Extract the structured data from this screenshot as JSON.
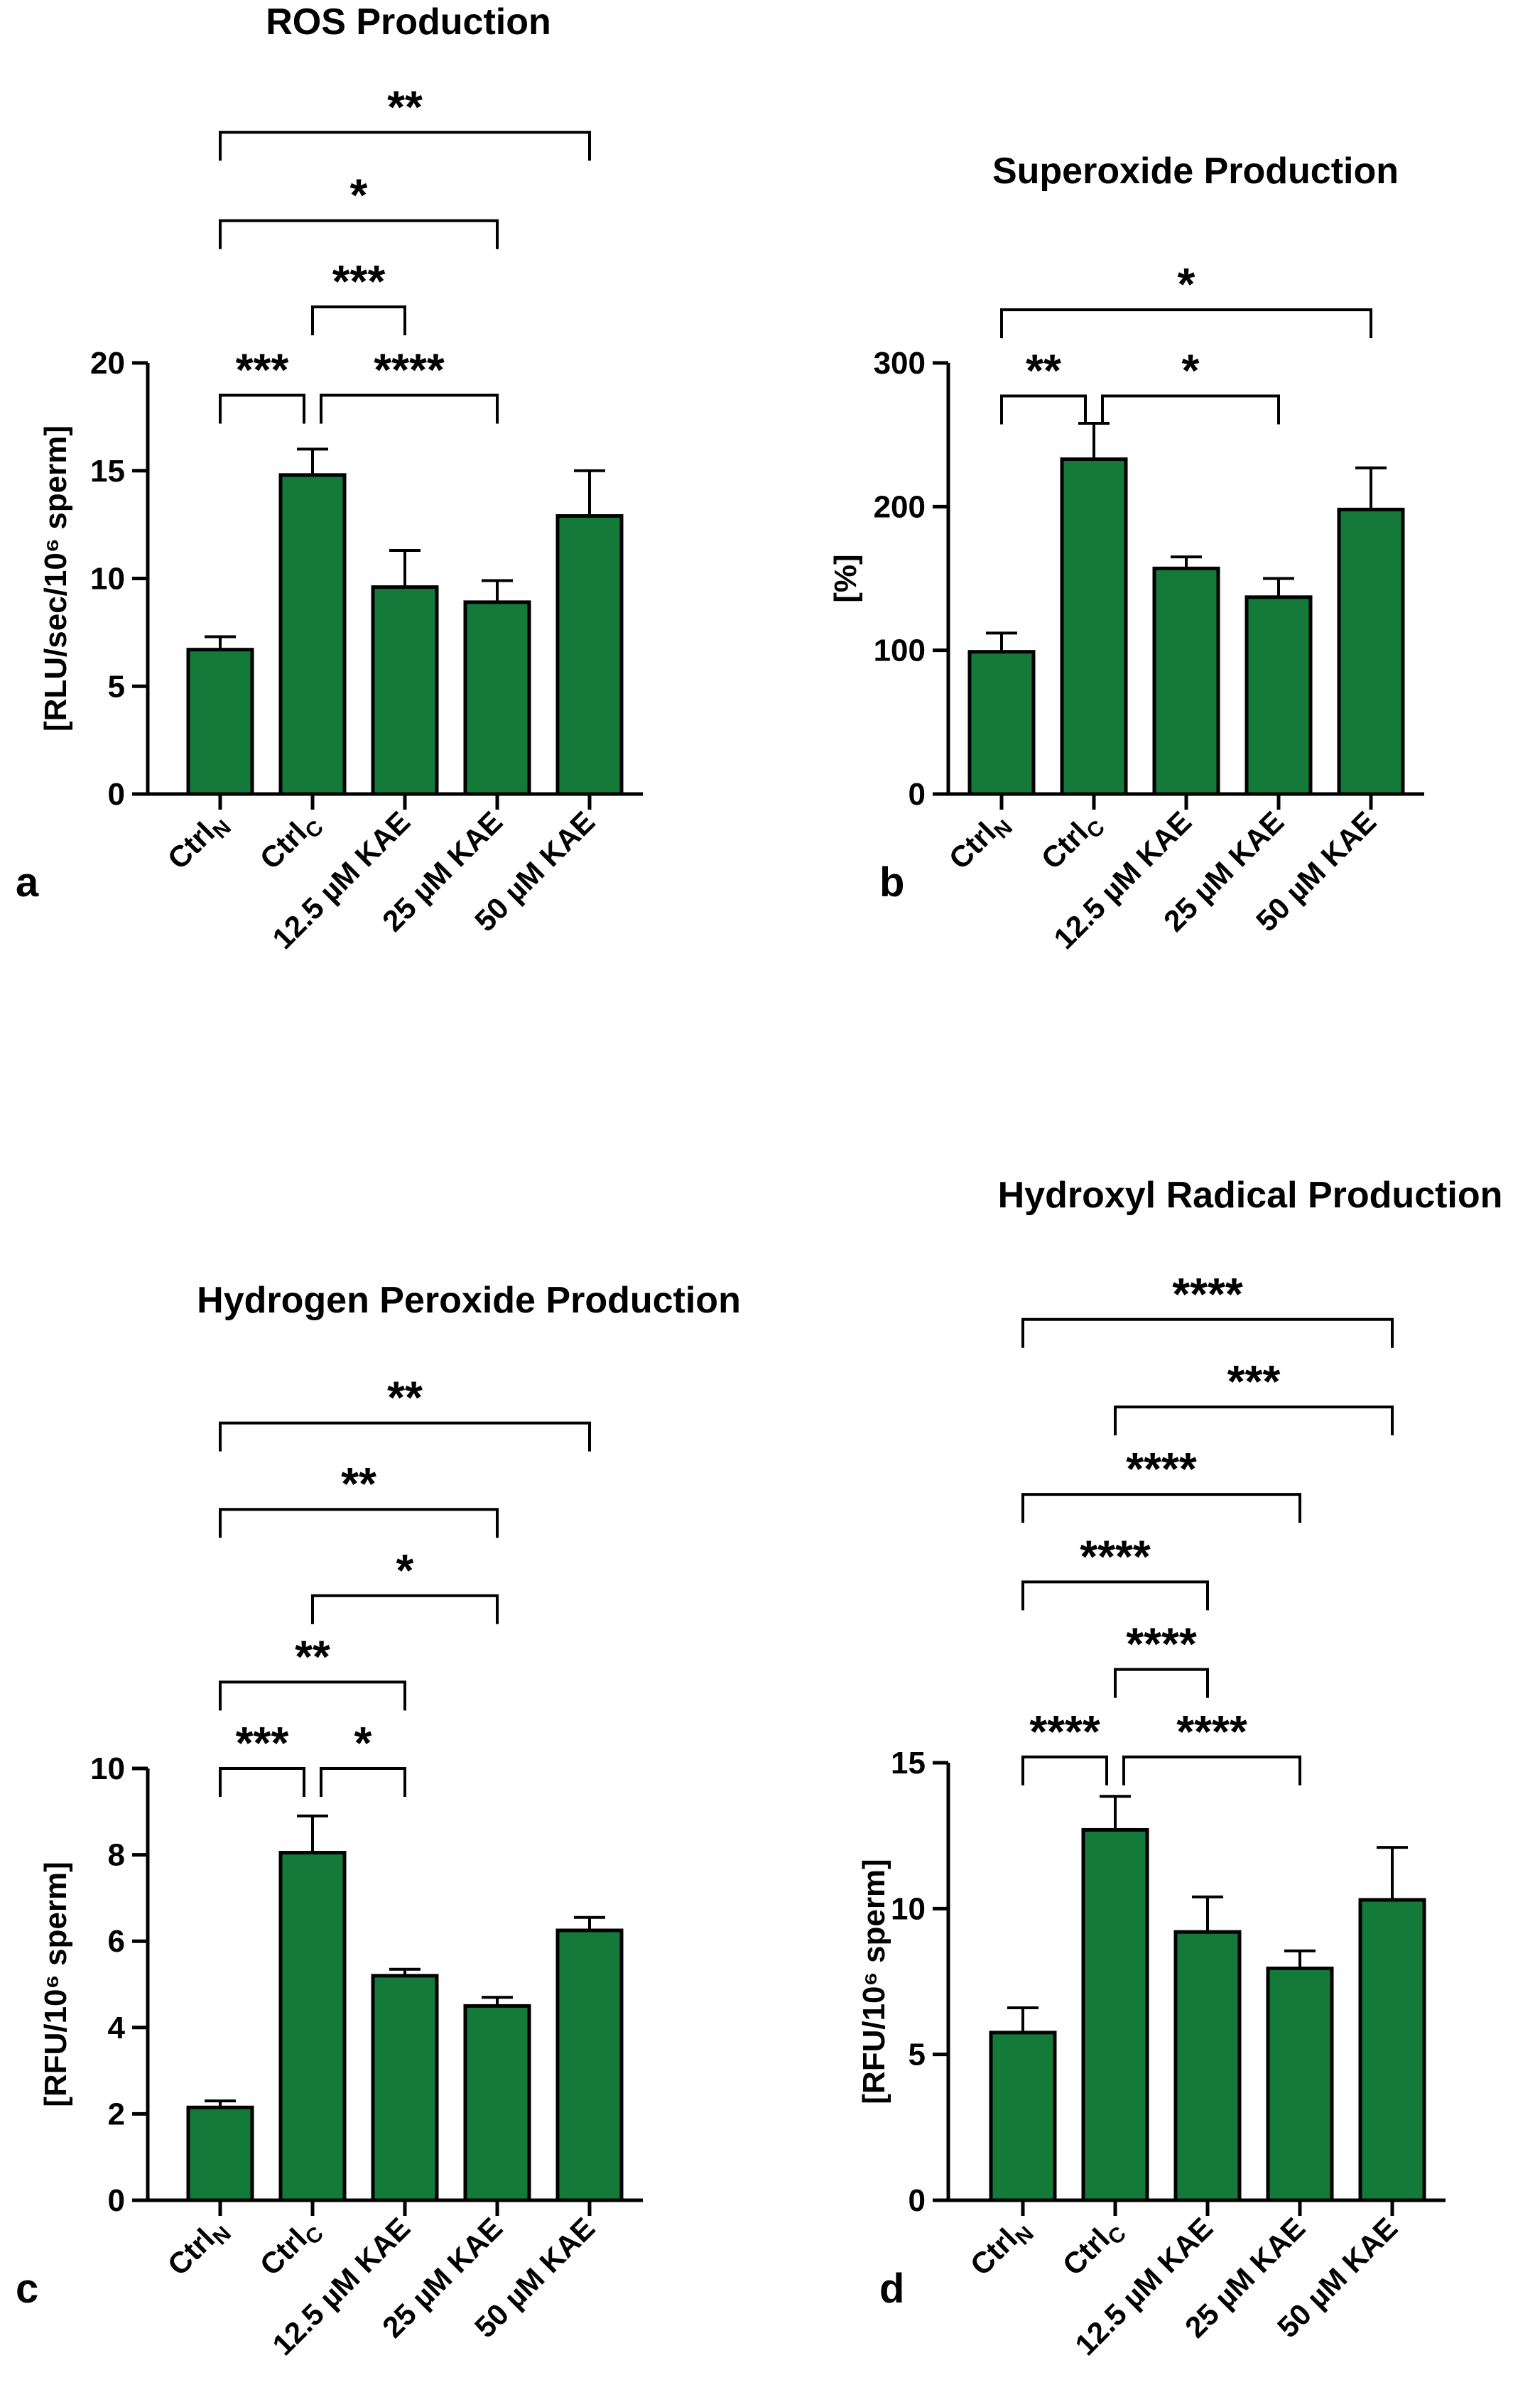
{
  "colors": {
    "bar_fill": "#147a3a",
    "bar_stroke": "#000000",
    "ink": "#000000"
  },
  "chart_data": [
    {
      "panel_label": "a",
      "type": "bar",
      "title": "ROS Production",
      "ylabel": "[RLU/sec/10⁶ sperm]",
      "ylim": [
        0,
        20
      ],
      "yticks": [
        "0",
        "5",
        "10",
        "15",
        "20"
      ],
      "categories": [
        {
          "main": "Ctrl",
          "sub": "N"
        },
        {
          "main": "Ctrl",
          "sub": "C"
        },
        {
          "main": "12.5 µM KAE",
          "sub": ""
        },
        {
          "main": "25 µM KAE",
          "sub": ""
        },
        {
          "main": "50 µM KAE",
          "sub": ""
        }
      ],
      "values": [
        6.7,
        14.8,
        9.6,
        8.9,
        12.9
      ],
      "errors": [
        0.6,
        1.2,
        1.7,
        1.0,
        2.1
      ],
      "significance": [
        {
          "from": 0,
          "to": 1,
          "label": "***",
          "y": 18.5
        },
        {
          "from": 1,
          "to": 3,
          "label": "****",
          "y": 18.5
        },
        {
          "from": 1,
          "to": 2,
          "label": "***",
          "y": 22.6
        },
        {
          "from": 0,
          "to": 3,
          "label": "*",
          "y": 26.6
        },
        {
          "from": 0,
          "to": 4,
          "label": "**",
          "y": 30.7
        }
      ]
    },
    {
      "panel_label": "b",
      "type": "bar",
      "title": "Superoxide Production",
      "ylabel": "[%]",
      "ylim": [
        0,
        300
      ],
      "yticks": [
        "0",
        "100",
        "200",
        "300"
      ],
      "categories": [
        {
          "main": "Ctrl",
          "sub": "N"
        },
        {
          "main": "Ctrl",
          "sub": "C"
        },
        {
          "main": "12.5 µM KAE",
          "sub": ""
        },
        {
          "main": "25 µM KAE",
          "sub": ""
        },
        {
          "main": "50 µM KAE",
          "sub": ""
        }
      ],
      "values": [
        99,
        233,
        157,
        137,
        198
      ],
      "errors": [
        13,
        25,
        8,
        13,
        29
      ],
      "significance": [
        {
          "from": 0,
          "to": 1,
          "label": "**",
          "y": 277
        },
        {
          "from": 1,
          "to": 3,
          "label": "*",
          "y": 277
        },
        {
          "from": 0,
          "to": 4,
          "label": "*",
          "y": 337
        }
      ]
    },
    {
      "panel_label": "c",
      "type": "bar",
      "title": "Hydrogen Peroxide Production",
      "ylabel": "[RFU/10⁶ sperm]",
      "ylim": [
        0,
        10
      ],
      "yticks": [
        "0",
        "2",
        "4",
        "6",
        "8",
        "10"
      ],
      "categories": [
        {
          "main": "Ctrl",
          "sub": "N"
        },
        {
          "main": "Ctrl",
          "sub": "C"
        },
        {
          "main": "12.5 µM KAE",
          "sub": ""
        },
        {
          "main": "25 µM KAE",
          "sub": ""
        },
        {
          "main": "50 µM KAE",
          "sub": ""
        }
      ],
      "values": [
        2.15,
        8.05,
        5.2,
        4.5,
        6.25
      ],
      "errors": [
        0.15,
        0.85,
        0.15,
        0.2,
        0.3
      ],
      "significance": [
        {
          "from": 0,
          "to": 1,
          "label": "***",
          "y": 10.0
        },
        {
          "from": 1,
          "to": 2,
          "label": "*",
          "y": 10.0
        },
        {
          "from": 0,
          "to": 2,
          "label": "**",
          "y": 12.0
        },
        {
          "from": 1,
          "to": 3,
          "label": "*",
          "y": 14.0
        },
        {
          "from": 0,
          "to": 3,
          "label": "**",
          "y": 16.0
        },
        {
          "from": 0,
          "to": 4,
          "label": "**",
          "y": 18.0
        }
      ]
    },
    {
      "panel_label": "d",
      "type": "bar",
      "title": "Hydroxyl Radical Production",
      "ylabel": "[RFU/10⁶ sperm]",
      "ylim": [
        0,
        15
      ],
      "yticks": [
        "0",
        "5",
        "10",
        "15"
      ],
      "categories": [
        {
          "main": "Ctrl",
          "sub": "N"
        },
        {
          "main": "Ctrl",
          "sub": "C"
        },
        {
          "main": "12.5 µM KAE",
          "sub": ""
        },
        {
          "main": "25 µM KAE",
          "sub": ""
        },
        {
          "main": "50 µM KAE",
          "sub": ""
        }
      ],
      "values": [
        5.75,
        12.7,
        9.2,
        7.95,
        10.3
      ],
      "errors": [
        0.85,
        1.15,
        1.2,
        0.6,
        1.8
      ],
      "significance": [
        {
          "from": 0,
          "to": 1,
          "label": "****",
          "y": 15.2
        },
        {
          "from": 1,
          "to": 3,
          "label": "****",
          "y": 15.2
        },
        {
          "from": 1,
          "to": 2,
          "label": "****",
          "y": 18.2
        },
        {
          "from": 0,
          "to": 2,
          "label": "****",
          "y": 21.2
        },
        {
          "from": 0,
          "to": 3,
          "label": "****",
          "y": 24.2
        },
        {
          "from": 1,
          "to": 4,
          "label": "***",
          "y": 27.2
        },
        {
          "from": 0,
          "to": 4,
          "label": "****",
          "y": 30.2
        }
      ]
    }
  ]
}
